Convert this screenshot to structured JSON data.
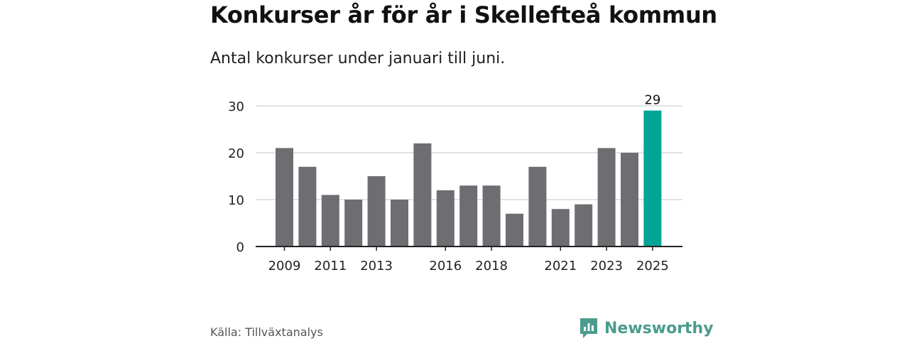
{
  "title": "Konkurser år för år i Skellefteå kommun",
  "subtitle": "Antal konkurser under januari till juni.",
  "source": "Källa: Tillväxtanalys",
  "brand": {
    "name": "Newsworthy",
    "icon": "newsworthy-logo-icon",
    "color": "#4a9c8c"
  },
  "colors": {
    "bar": "#6e6d72",
    "highlight": "#00a597",
    "grid": "#d9d9d9",
    "axis": "#222222"
  },
  "chart_data": {
    "type": "bar",
    "title": "",
    "xlabel": "",
    "ylabel": "",
    "ylim": [
      0,
      30
    ],
    "yticks": [
      0,
      10,
      20,
      30
    ],
    "grid": true,
    "categories": [
      "2009",
      "2010",
      "2011",
      "2012",
      "2013",
      "2014",
      "2015",
      "2016",
      "2017",
      "2018",
      "2019",
      "2020",
      "2021",
      "2022",
      "2023",
      "2024",
      "2025"
    ],
    "values": [
      21,
      17,
      11,
      10,
      15,
      10,
      22,
      12,
      13,
      13,
      7,
      17,
      8,
      9,
      21,
      20,
      29
    ],
    "xtick_labels": [
      "2009",
      "2011",
      "2013",
      "2016",
      "2018",
      "2021",
      "2023",
      "2025"
    ],
    "highlight_category": "2025",
    "data_labels": [
      {
        "category": "2025",
        "text": "29"
      }
    ]
  }
}
